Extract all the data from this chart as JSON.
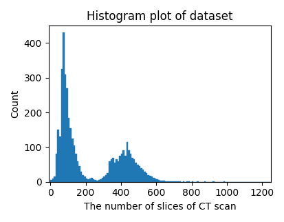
{
  "title": "Histogram plot of dataset",
  "xlabel": "The number of slices of CT scan",
  "ylabel": "Count",
  "bar_color": "#1f77b4",
  "xlim": [
    -10,
    1250
  ],
  "ylim": [
    0,
    450
  ],
  "figsize": [
    4.14,
    3.22
  ],
  "dpi": 100,
  "bin_width": 10,
  "bar_heights": [
    5,
    10,
    15,
    80,
    150,
    130,
    325,
    430,
    310,
    270,
    185,
    155,
    125,
    105,
    80,
    60,
    45,
    30,
    20,
    15,
    10,
    8,
    10,
    12,
    8,
    5,
    3,
    5,
    8,
    12,
    15,
    20,
    25,
    60,
    65,
    70,
    55,
    65,
    60,
    75,
    80,
    90,
    75,
    115,
    90,
    80,
    70,
    65,
    55,
    50,
    45,
    40,
    35,
    30,
    25,
    20,
    18,
    15,
    12,
    10,
    8,
    5,
    4,
    3,
    3,
    2,
    2,
    2,
    2,
    1,
    1,
    1,
    1,
    1,
    0,
    1,
    0,
    1,
    1,
    0,
    1,
    0,
    0,
    1,
    0,
    0,
    0,
    1,
    0,
    0,
    0,
    0,
    1,
    0,
    0,
    0,
    0,
    0,
    1,
    0,
    0,
    0,
    0,
    0,
    0,
    0,
    0,
    0,
    0,
    0,
    0,
    0,
    0,
    0,
    0,
    0,
    0,
    0,
    0,
    0,
    0,
    0,
    0,
    0,
    0
  ]
}
